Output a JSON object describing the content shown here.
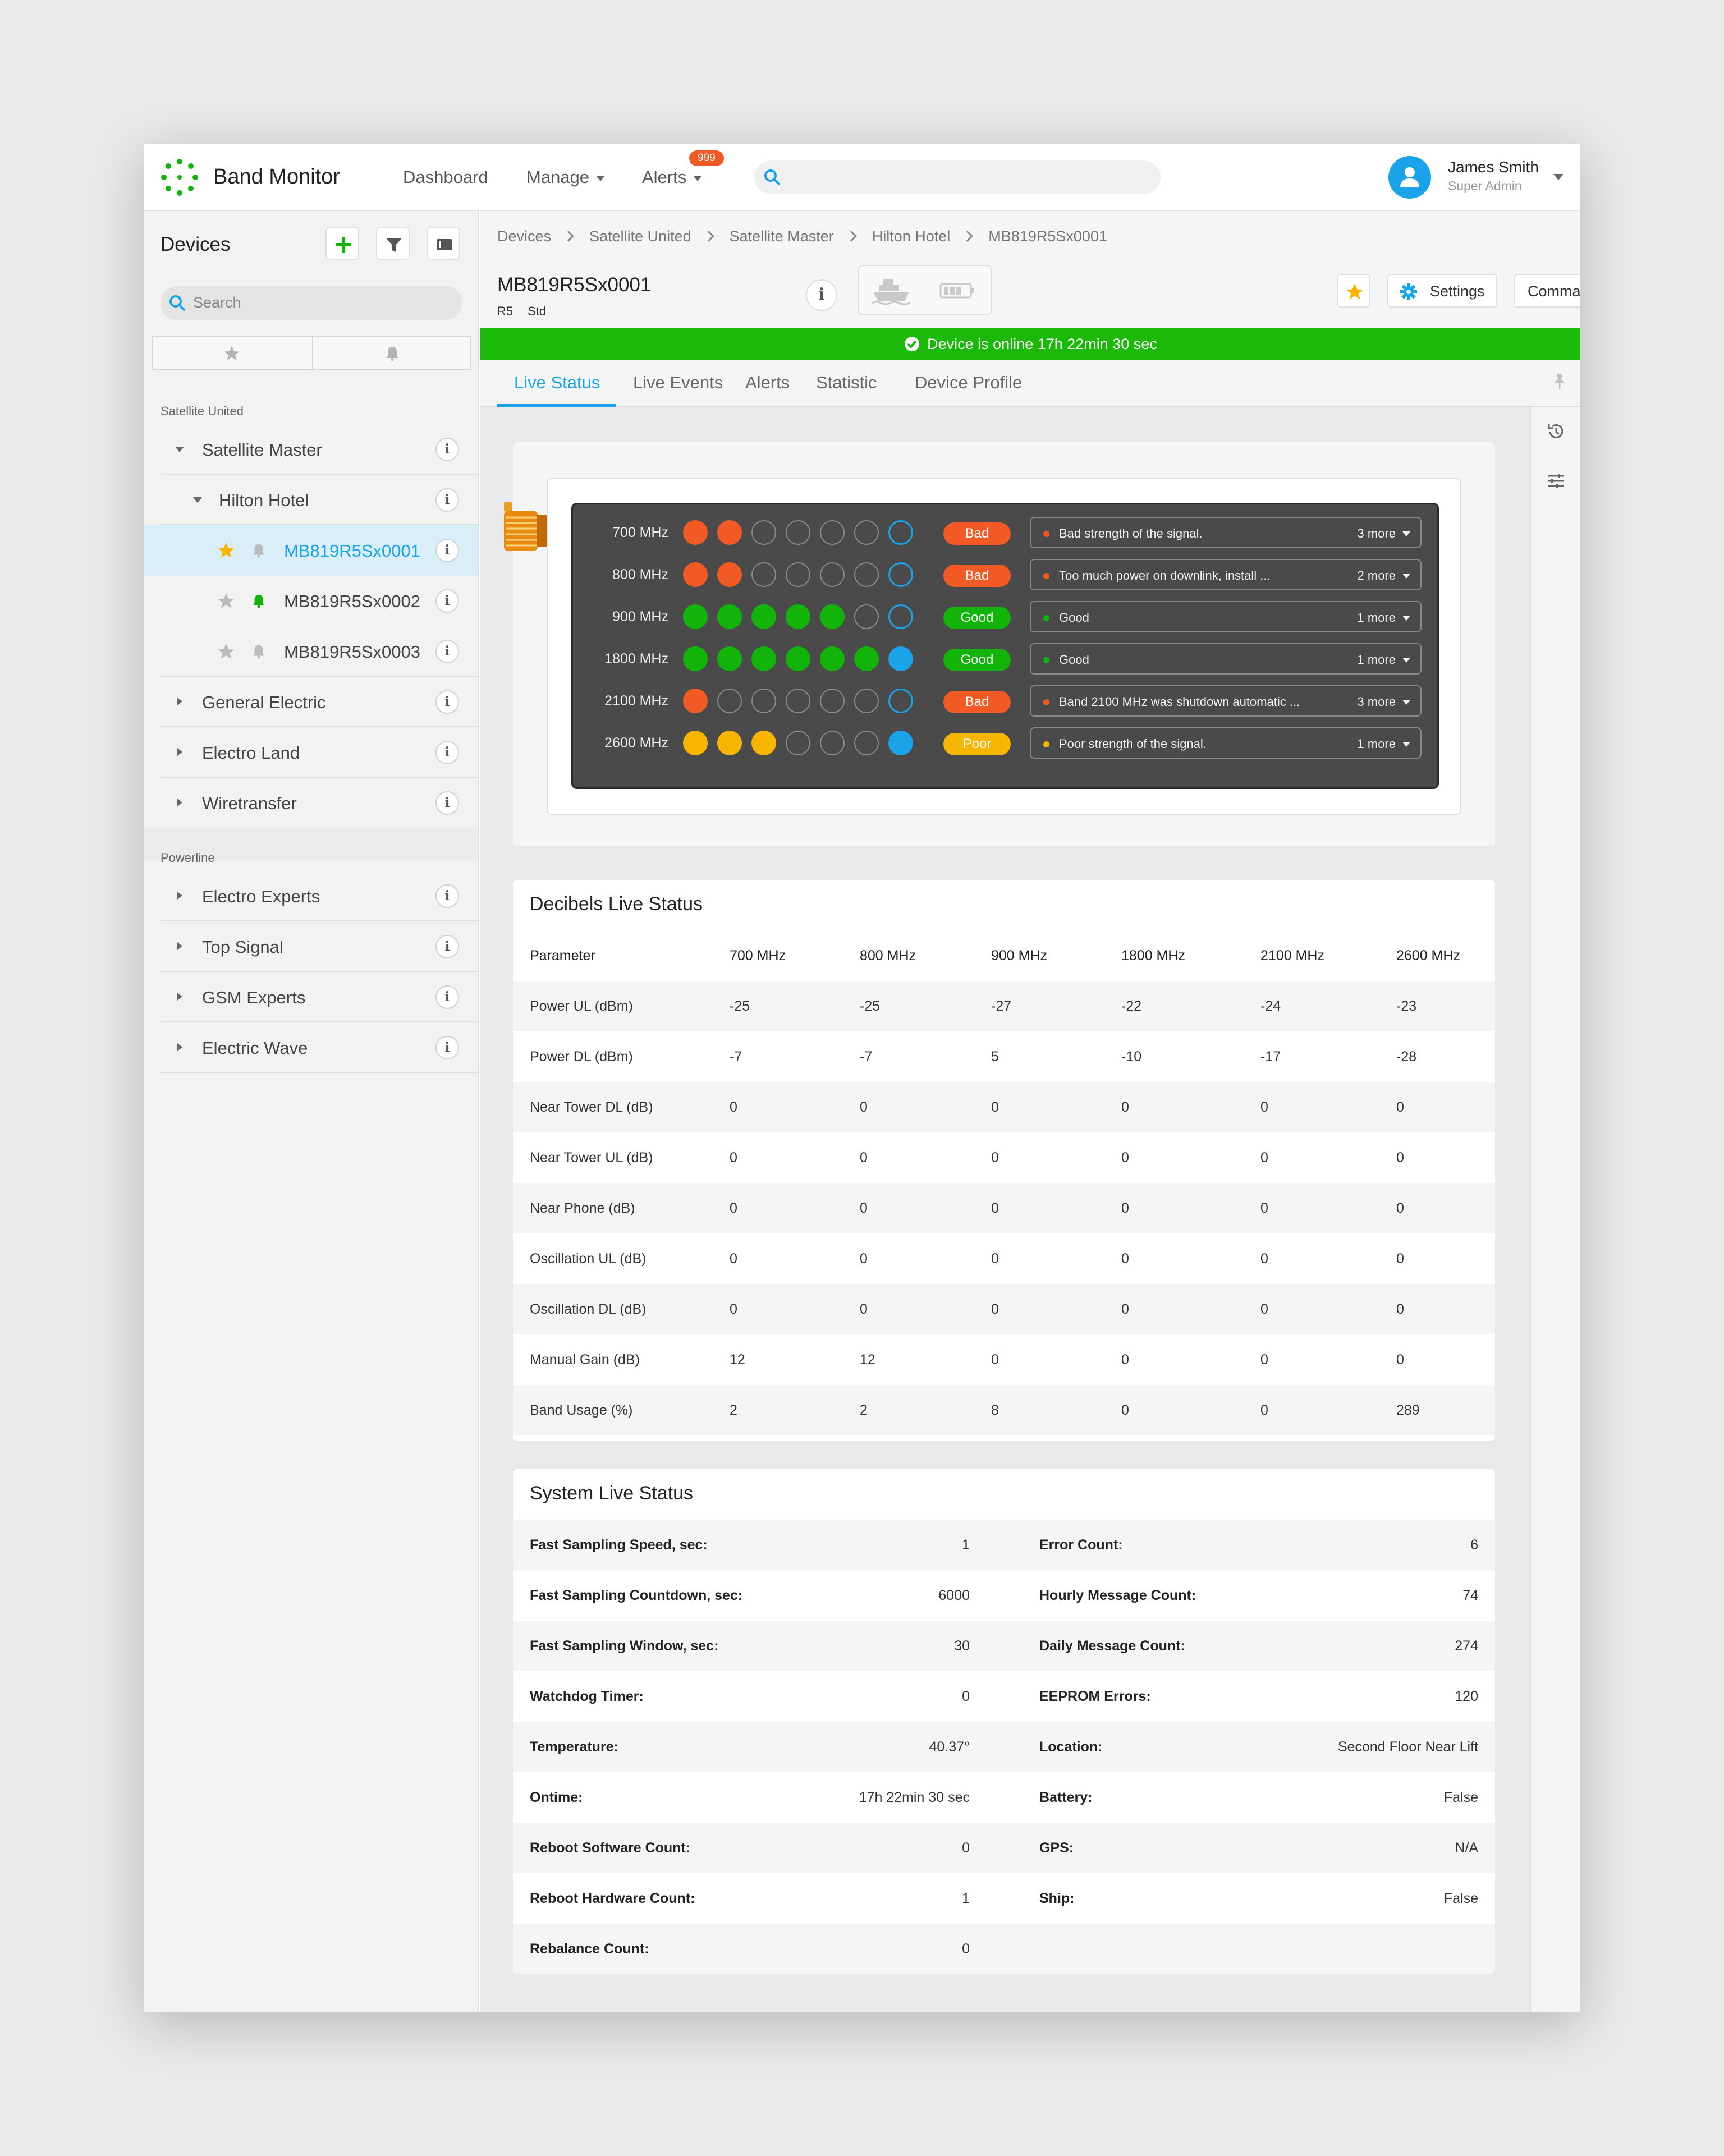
{
  "app": {
    "title": "Band Monitor"
  },
  "nav": {
    "dashboard": "Dashboard",
    "manage": "Manage",
    "alerts": "Alerts",
    "alerts_badge": "999"
  },
  "user": {
    "name": "James Smith",
    "role": "Super Admin"
  },
  "sidebar": {
    "title": "Devices",
    "search_placeholder": "Search",
    "groups": [
      {
        "label": "Satellite United",
        "items": [
          {
            "label": "Satellite Master"
          },
          {
            "label": "Hilton Hotel"
          },
          {
            "label": "MB819R5Sx0001",
            "starred": true,
            "selected": true
          },
          {
            "label": "MB819R5Sx0002",
            "alert": true
          },
          {
            "label": "MB819R5Sx0003"
          },
          {
            "label": "General Electric"
          },
          {
            "label": "Electro Land"
          },
          {
            "label": "Wiretransfer"
          }
        ]
      },
      {
        "label": "Powerline",
        "items": [
          {
            "label": "Electro Experts"
          },
          {
            "label": "Top Signal"
          },
          {
            "label": "GSM Experts"
          },
          {
            "label": "Electric Wave"
          }
        ]
      }
    ]
  },
  "breadcrumb": [
    "Devices",
    "Satellite United",
    "Satellite Master",
    "Hilton Hotel",
    "MB819R5Sx0001"
  ],
  "device": {
    "name": "MB819R5Sx0001",
    "tag1": "R5",
    "tag2": "Std"
  },
  "toolbar": {
    "settings": "Settings",
    "commands": "Commands"
  },
  "status_banner": "Device is online 17h 22min 30 sec",
  "tabs": [
    "Live Status",
    "Live Events",
    "Alerts",
    "Statistic",
    "Device Profile"
  ],
  "colors": {
    "accent": "#1aa3e8",
    "bad": "#f15a24",
    "good": "#12b40a",
    "poor": "#f7b500",
    "online": "#1cb80a"
  },
  "bands": [
    {
      "label": "700 MHz",
      "leds": [
        "bad",
        "bad",
        "off",
        "off",
        "off",
        "off",
        "ring"
      ],
      "status": "Bad",
      "level": "bad",
      "message": "Bad strength of the signal.",
      "more": "3 more"
    },
    {
      "label": "800 MHz",
      "leds": [
        "bad",
        "bad",
        "off",
        "off",
        "off",
        "off",
        "ring"
      ],
      "status": "Bad",
      "level": "bad",
      "message": "Too much power on downlink, install ...",
      "more": "2 more"
    },
    {
      "label": "900 MHz",
      "leds": [
        "good",
        "good",
        "good",
        "good",
        "good",
        "off",
        "ring"
      ],
      "status": "Good",
      "level": "good",
      "message": "Good",
      "more": "1 more"
    },
    {
      "label": "1800 MHz",
      "leds": [
        "good",
        "good",
        "good",
        "good",
        "good",
        "good",
        "blue"
      ],
      "status": "Good",
      "level": "good",
      "message": "Good",
      "more": "1 more"
    },
    {
      "label": "2100 MHz",
      "leds": [
        "bad",
        "off",
        "off",
        "off",
        "off",
        "off",
        "ring"
      ],
      "status": "Bad",
      "level": "bad",
      "message": "Band 2100 MHz was shutdown automatic ...",
      "more": "3 more"
    },
    {
      "label": "2600 MHz",
      "leds": [
        "poor",
        "poor",
        "poor",
        "off",
        "off",
        "off",
        "blue"
      ],
      "status": "Poor",
      "level": "poor",
      "message": "Poor strength of the signal.",
      "more": "1 more"
    }
  ],
  "decibels": {
    "title": "Decibels Live Status",
    "headers": [
      "Parameter",
      "700 MHz",
      "800 MHz",
      "900 MHz",
      "1800 MHz",
      "2100 MHz",
      "2600 MHz"
    ],
    "rows": [
      [
        "Power UL (dBm)",
        "-25",
        "-25",
        "-27",
        "-22",
        "-24",
        "-23"
      ],
      [
        "Power DL (dBm)",
        "-7",
        "-7",
        "5",
        "-10",
        "-17",
        "-28"
      ],
      [
        "Near Tower DL (dB)",
        "0",
        "0",
        "0",
        "0",
        "0",
        "0"
      ],
      [
        "Near Tower UL (dB)",
        "0",
        "0",
        "0",
        "0",
        "0",
        "0"
      ],
      [
        "Near Phone (dB)",
        "0",
        "0",
        "0",
        "0",
        "0",
        "0"
      ],
      [
        "Oscillation UL (dB)",
        "0",
        "0",
        "0",
        "0",
        "0",
        "0"
      ],
      [
        "Oscillation DL (dB)",
        "0",
        "0",
        "0",
        "0",
        "0",
        "0"
      ],
      [
        "Manual Gain (dB)",
        "12",
        "12",
        "0",
        "0",
        "0",
        "0"
      ],
      [
        "Band Usage (%)",
        "2",
        "2",
        "8",
        "0",
        "0",
        "289"
      ]
    ]
  },
  "system": {
    "title": "System Live Status",
    "left": [
      {
        "key": "Fast Sampling Speed, sec:",
        "value": "1"
      },
      {
        "key": "Fast Sampling Countdown, sec:",
        "value": "6000"
      },
      {
        "key": "Fast Sampling Window, sec:",
        "value": "30"
      },
      {
        "key": "Watchdog Timer:",
        "value": "0"
      },
      {
        "key": "Temperature:",
        "value": "40.37°"
      },
      {
        "key": "Ontime:",
        "value": "17h 22min 30 sec"
      },
      {
        "key": "Reboot Software Count:",
        "value": "0"
      },
      {
        "key": "Reboot Hardware Count:",
        "value": "1"
      },
      {
        "key": "Rebalance Count:",
        "value": "0"
      }
    ],
    "right": [
      {
        "key": "Error Count:",
        "value": "6"
      },
      {
        "key": "Hourly Message Count:",
        "value": "74"
      },
      {
        "key": "Daily Message Count:",
        "value": "274"
      },
      {
        "key": "EEPROM Errors:",
        "value": "120"
      },
      {
        "key": "Location:",
        "value": "Second Floor Near Lift"
      },
      {
        "key": "Battery:",
        "value": "False"
      },
      {
        "key": "GPS:",
        "value": "N/A"
      },
      {
        "key": "Ship:",
        "value": "False"
      }
    ]
  }
}
